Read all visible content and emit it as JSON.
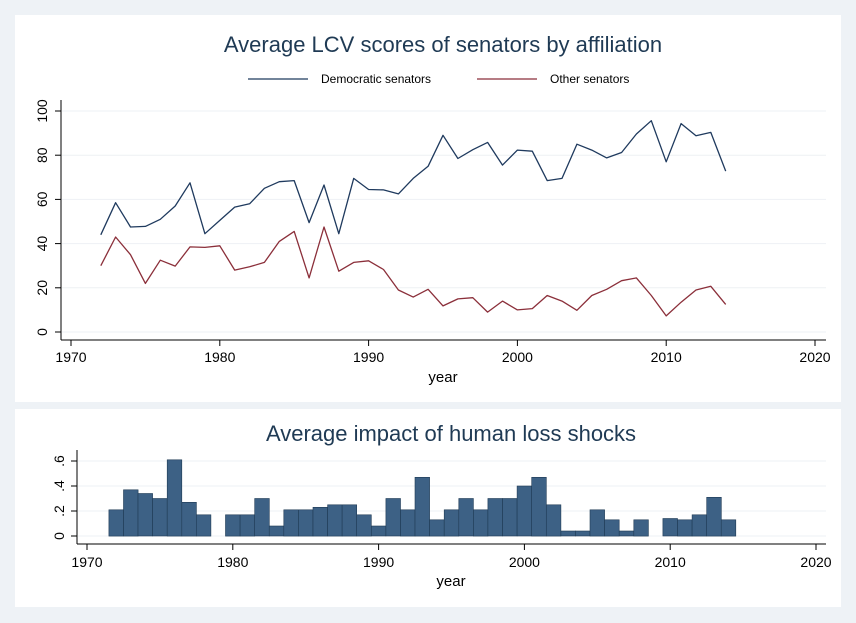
{
  "colors": {
    "democratic": "#1f3a5e",
    "other": "#8b2f3a",
    "bars": "#3d6185",
    "bar_edge": "#1f3a54",
    "title": "#1f3a54",
    "outer_bg": "#eef2f6",
    "panel_bg": "#ffffff",
    "grid": "#eef1f4"
  },
  "chart_data": [
    {
      "type": "line",
      "title": "Average LCV scores of senators by affiliation",
      "xlabel": "year",
      "ylabel": "",
      "xlim": [
        1970,
        2020
      ],
      "ylim": [
        0,
        100
      ],
      "xticks": [
        1970,
        1980,
        1990,
        2000,
        2010,
        2020
      ],
      "yticks": [
        0,
        20,
        40,
        60,
        80,
        100
      ],
      "grid": true,
      "legend_position": "top",
      "x": [
        1972,
        1973,
        1974,
        1975,
        1976,
        1977,
        1978,
        1979,
        1980,
        1981,
        1982,
        1983,
        1984,
        1985,
        1986,
        1987,
        1988,
        1989,
        1990,
        1991,
        1992,
        1993,
        1994,
        1995,
        1996,
        1997,
        1998,
        1999,
        2000,
        2001,
        2002,
        2003,
        2004,
        2005,
        2006,
        2007,
        2008,
        2009,
        2010,
        2011,
        2012,
        2013,
        2014
      ],
      "series": [
        {
          "name": "Democratic senators",
          "color_key": "democratic",
          "values": [
            44,
            58.5,
            47.5,
            47.8,
            51,
            57,
            67.5,
            44.5,
            50.5,
            56.5,
            58,
            65,
            68,
            68.5,
            49.5,
            66.5,
            44.5,
            69.5,
            64.5,
            64.3,
            62.5,
            69.5,
            75,
            89,
            78.5,
            82.5,
            85.8,
            75.5,
            82.3,
            81.8,
            68.5,
            69.5,
            85,
            82.3,
            78.8,
            81.2,
            89.6,
            95.6,
            77,
            94.3,
            88.8,
            90.3,
            72.8
          ]
        },
        {
          "name": "Other senators",
          "color_key": "other",
          "values": [
            30,
            43,
            35,
            22,
            32.5,
            29.8,
            38.5,
            38.3,
            39,
            28,
            29.5,
            31.5,
            41,
            45.5,
            24.5,
            47.5,
            27.5,
            31.5,
            32.2,
            28.3,
            19,
            15.8,
            19.3,
            11.8,
            15,
            15.5,
            9,
            14,
            10,
            10.6,
            16.5,
            14,
            9.8,
            16.5,
            19.3,
            23.2,
            24.5,
            16.5,
            7.3,
            13.5,
            19,
            20.7,
            12.5
          ]
        }
      ]
    },
    {
      "type": "bar",
      "title": "Average impact of human loss shocks",
      "xlabel": "year",
      "ylabel": "",
      "xlim": [
        1970,
        2020
      ],
      "ylim": [
        0,
        0.6
      ],
      "xticks": [
        1970,
        1980,
        1990,
        2000,
        2010,
        2020
      ],
      "yticks": [
        0,
        0.2,
        0.4,
        0.6
      ],
      "ytick_labels": [
        "0",
        ".2",
        ".4",
        ".6"
      ],
      "grid": true,
      "x": [
        1972,
        1973,
        1974,
        1975,
        1976,
        1977,
        1978,
        1979,
        1980,
        1981,
        1982,
        1983,
        1984,
        1985,
        1986,
        1987,
        1988,
        1989,
        1990,
        1991,
        1992,
        1993,
        1994,
        1995,
        1996,
        1997,
        1998,
        1999,
        2000,
        2001,
        2002,
        2003,
        2004,
        2005,
        2006,
        2007,
        2008,
        2009,
        2010,
        2011,
        2012,
        2013,
        2014
      ],
      "values": [
        0.21,
        0.37,
        0.34,
        0.3,
        0.61,
        0.27,
        0.17,
        0,
        0.17,
        0.17,
        0.3,
        0.08,
        0.21,
        0.21,
        0.23,
        0.25,
        0.25,
        0.17,
        0.08,
        0.3,
        0.21,
        0.47,
        0.13,
        0.21,
        0.3,
        0.21,
        0.3,
        0.3,
        0.4,
        0.47,
        0.25,
        0.04,
        0.04,
        0.21,
        0.13,
        0.04,
        0.13,
        0,
        0.14,
        0.13,
        0.17,
        0.31,
        0.13
      ]
    }
  ]
}
